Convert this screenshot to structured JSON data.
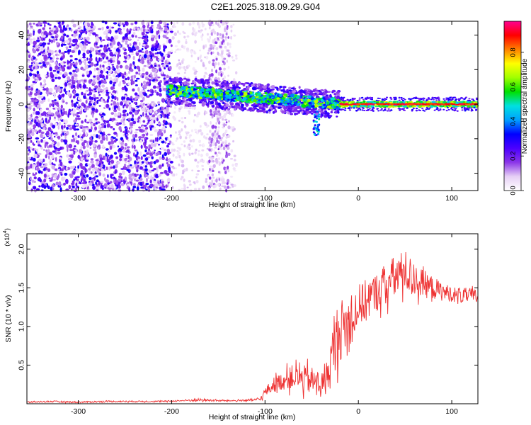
{
  "figure": {
    "title": "C2E1.2025.318.09.29.G04"
  },
  "chart_data": [
    {
      "type": "heatmap",
      "xlabel": "Height of straight line (km)",
      "ylabel": "Frequency (Hz)",
      "xlim": [
        -355,
        128
      ],
      "ylim": [
        -50,
        48
      ],
      "x_ticks": [
        -300,
        -200,
        -100,
        0,
        100
      ],
      "y_ticks": [
        -40,
        -20,
        0,
        20,
        40
      ],
      "colorbar": {
        "label": "Normalized spectral amplitude",
        "range": [
          0,
          0.98
        ],
        "ticks": [
          0.0,
          0.2,
          0.4,
          0.6,
          0.8
        ],
        "colors": [
          "#ffffff",
          "#e6cff5",
          "#8a35e8",
          "#4b00ff",
          "#0000ff",
          "#00a0ff",
          "#00e0e0",
          "#00e000",
          "#a0ff00",
          "#ffff00",
          "#ff8000",
          "#ff0000",
          "#ff0090"
        ]
      },
      "regions": [
        {
          "x_range": [
            -355,
            -200
          ],
          "freq_range": [
            -50,
            48
          ],
          "amplitude": "low 0.0-0.3, broadband noise"
        },
        {
          "x_range": [
            -200,
            -130
          ],
          "freq_range": [
            -50,
            48
          ],
          "amplitude": "very low 0.0-0.1, sparse streaks near -150"
        },
        {
          "x_range": [
            -205,
            -20
          ],
          "freq_center_start": 8,
          "freq_center_end": 0,
          "amplitude": "0.3-0.7, drifting band"
        },
        {
          "x_range": [
            -20,
            128
          ],
          "freq_center": 0,
          "amplitude": "0.5-0.98, narrow steady line"
        }
      ]
    },
    {
      "type": "line",
      "xlabel": "Height of straight line (km)",
      "ylabel": "SNR (10 * v/v)",
      "y_multiplier": "(x10",
      "y_multiplier_exp": "4",
      "xlim": [
        -355,
        128
      ],
      "ylim": [
        0,
        2.2
      ],
      "x_ticks": [
        -300,
        -200,
        -100,
        0,
        100
      ],
      "y_ticks": [
        0.5,
        1.0,
        1.5,
        2.0
      ],
      "series": [
        {
          "color": "#ee3333",
          "x": [
            -355,
            -330,
            -300,
            -270,
            -240,
            -210,
            -190,
            -170,
            -150,
            -130,
            -110,
            -105,
            -100,
            -90,
            -80,
            -70,
            -60,
            -50,
            -40,
            -35,
            -30,
            -25,
            -20,
            -15,
            -10,
            -5,
            0,
            5,
            10,
            15,
            20,
            30,
            40,
            50,
            60,
            70,
            80,
            90,
            100,
            110,
            120,
            128
          ],
          "y": [
            0.02,
            0.03,
            0.02,
            0.03,
            0.03,
            0.03,
            0.04,
            0.05,
            0.04,
            0.04,
            0.05,
            0.06,
            0.15,
            0.25,
            0.3,
            0.35,
            0.32,
            0.3,
            0.25,
            0.3,
            0.5,
            0.8,
            0.95,
            1.0,
            1.05,
            1.15,
            1.25,
            1.3,
            1.35,
            1.4,
            1.45,
            1.55,
            1.65,
            1.72,
            1.6,
            1.55,
            1.5,
            1.45,
            1.42,
            1.4,
            1.4,
            1.38
          ],
          "noise": [
            0.01,
            0.01,
            0.01,
            0.01,
            0.01,
            0.01,
            0.01,
            0.02,
            0.01,
            0.01,
            0.02,
            0.02,
            0.06,
            0.1,
            0.12,
            0.16,
            0.18,
            0.18,
            0.15,
            0.2,
            0.3,
            0.4,
            0.4,
            0.38,
            0.35,
            0.32,
            0.3,
            0.28,
            0.28,
            0.26,
            0.25,
            0.28,
            0.28,
            0.28,
            0.22,
            0.18,
            0.15,
            0.12,
            0.1,
            0.1,
            0.1,
            0.1
          ]
        }
      ]
    }
  ]
}
